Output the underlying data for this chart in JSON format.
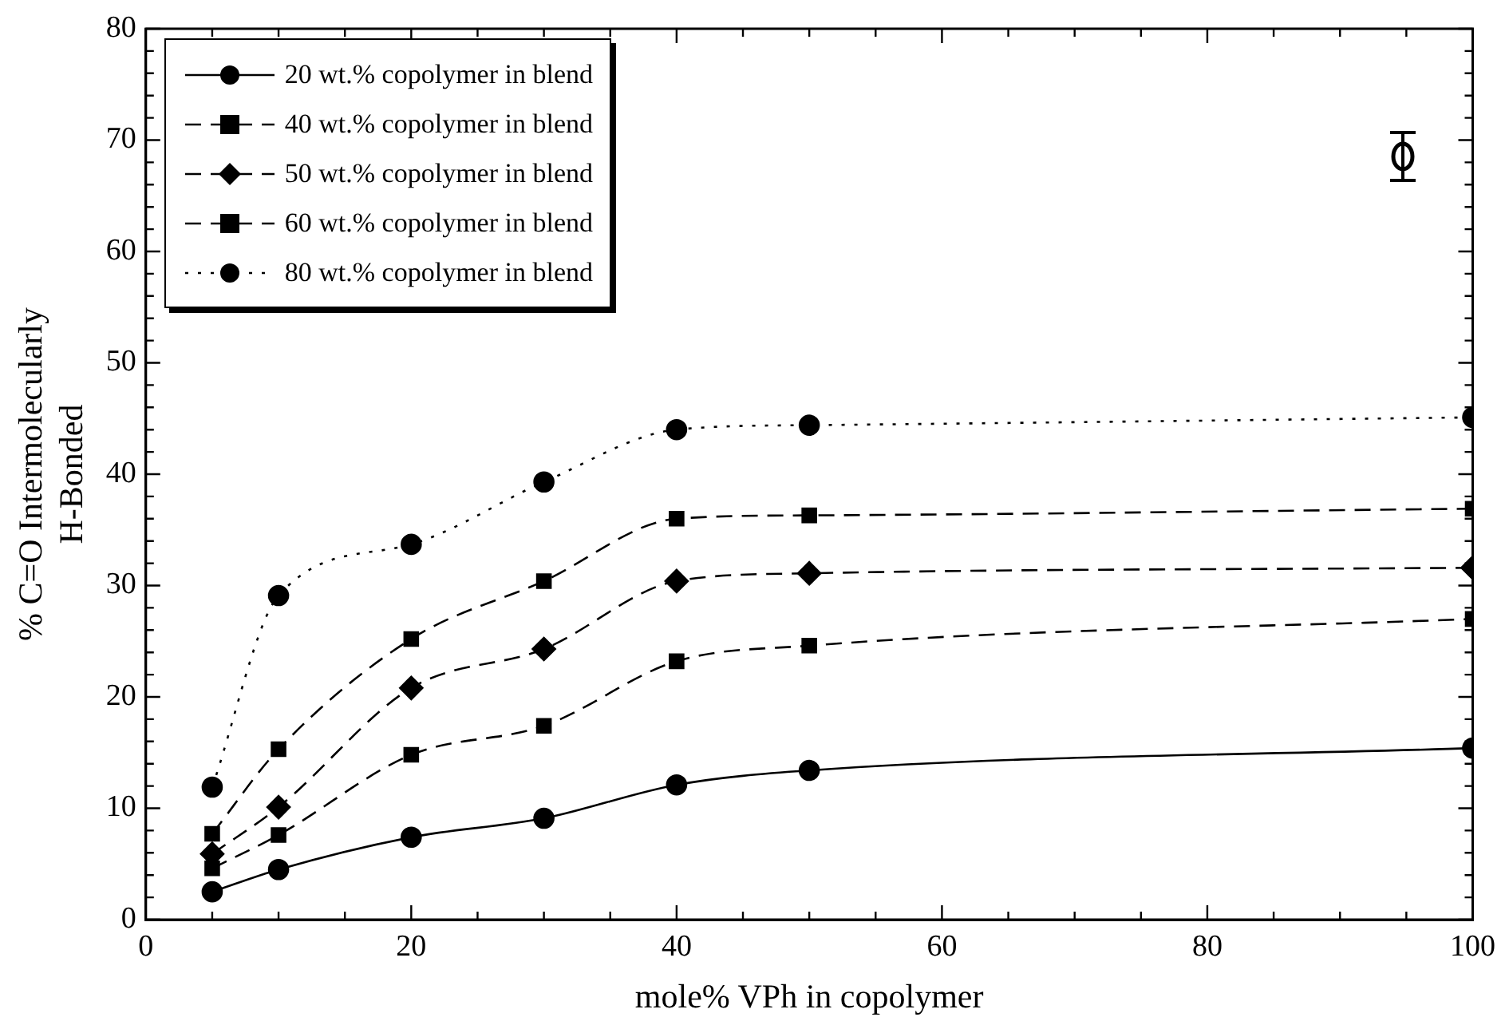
{
  "chart_data": {
    "type": "line",
    "xlabel": "mole% VPh in copolymer",
    "ylabel": "% C=O Intermolecularly\nH-Bonded",
    "x": [
      5,
      10,
      20,
      30,
      40,
      50,
      100
    ],
    "xlim": [
      0,
      100
    ],
    "ylim": [
      0,
      80
    ],
    "xticks": [
      0,
      {
        "value": 5,
        "label": null
      },
      {
        "value": 10,
        "label": null
      },
      {
        "value": 15,
        "label": null
      },
      20,
      {
        "value": 25,
        "label": null
      },
      {
        "value": 30,
        "label": null
      },
      {
        "value": 35,
        "label": null
      },
      40,
      {
        "value": 45,
        "label": null
      },
      {
        "value": 50,
        "label": null
      },
      {
        "value": 55,
        "label": null
      },
      60,
      {
        "value": 65,
        "label": null
      },
      {
        "value": 70,
        "label": null
      },
      {
        "value": 75,
        "label": null
      },
      80,
      {
        "value": 85,
        "label": null
      },
      {
        "value": 90,
        "label": null
      },
      {
        "value": 95,
        "label": null
      },
      100
    ],
    "yticks": [
      0,
      {
        "value": 2,
        "label": null
      },
      {
        "value": 4,
        "label": null
      },
      {
        "value": 6,
        "label": null
      },
      {
        "value": 8,
        "label": null
      },
      10,
      {
        "value": 12,
        "label": null
      },
      {
        "value": 14,
        "label": null
      },
      {
        "value": 16,
        "label": null
      },
      {
        "value": 18,
        "label": null
      },
      20,
      {
        "value": 22,
        "label": null
      },
      {
        "value": 24,
        "label": null
      },
      {
        "value": 26,
        "label": null
      },
      {
        "value": 28,
        "label": null
      },
      30,
      {
        "value": 32,
        "label": null
      },
      {
        "value": 34,
        "label": null
      },
      {
        "value": 36,
        "label": null
      },
      {
        "value": 38,
        "label": null
      },
      40,
      {
        "value": 42,
        "label": null
      },
      {
        "value": 44,
        "label": null
      },
      {
        "value": 46,
        "label": null
      },
      {
        "value": 48,
        "label": null
      },
      50,
      {
        "value": 52,
        "label": null
      },
      {
        "value": 54,
        "label": null
      },
      {
        "value": 56,
        "label": null
      },
      {
        "value": 58,
        "label": null
      },
      60,
      {
        "value": 62,
        "label": null
      },
      {
        "value": 64,
        "label": null
      },
      {
        "value": 66,
        "label": null
      },
      {
        "value": 68,
        "label": null
      },
      70,
      {
        "value": 72,
        "label": null
      },
      {
        "value": 74,
        "label": null
      },
      {
        "value": 76,
        "label": null
      },
      {
        "value": 78,
        "label": null
      },
      80
    ],
    "grid": false,
    "legend": "top left",
    "series": [
      {
        "name": "20 wt.% copolymer in blend",
        "color": "#000000",
        "marker": "circle",
        "line_style": "solid",
        "values": [
          2.5,
          4.5,
          7.4,
          9.1,
          12.1,
          13.4,
          15.4
        ]
      },
      {
        "name": "40 wt.% copolymer in blend",
        "color": "#000000",
        "marker": "square",
        "line_style": "dashed",
        "values": [
          4.6,
          7.6,
          14.8,
          17.4,
          23.2,
          24.6,
          27.0
        ]
      },
      {
        "name": "50 wt.% copolymer in blend",
        "color": "#000000",
        "marker": "diamond",
        "line_style": "dashed",
        "values": [
          5.9,
          10.1,
          20.8,
          24.3,
          30.4,
          31.1,
          31.6
        ]
      },
      {
        "name": "60 wt.% copolymer in blend",
        "color": "#000000",
        "marker": "square",
        "line_style": "dashed",
        "values": [
          7.7,
          15.3,
          25.2,
          30.4,
          36.0,
          36.3,
          36.9
        ]
      },
      {
        "name": "80 wt.% copolymer in blend",
        "color": "#000000",
        "marker": "circle",
        "line_style": "dotted",
        "values": [
          11.9,
          29.1,
          33.7,
          39.3,
          44.0,
          44.4,
          45.1
        ]
      }
    ]
  }
}
